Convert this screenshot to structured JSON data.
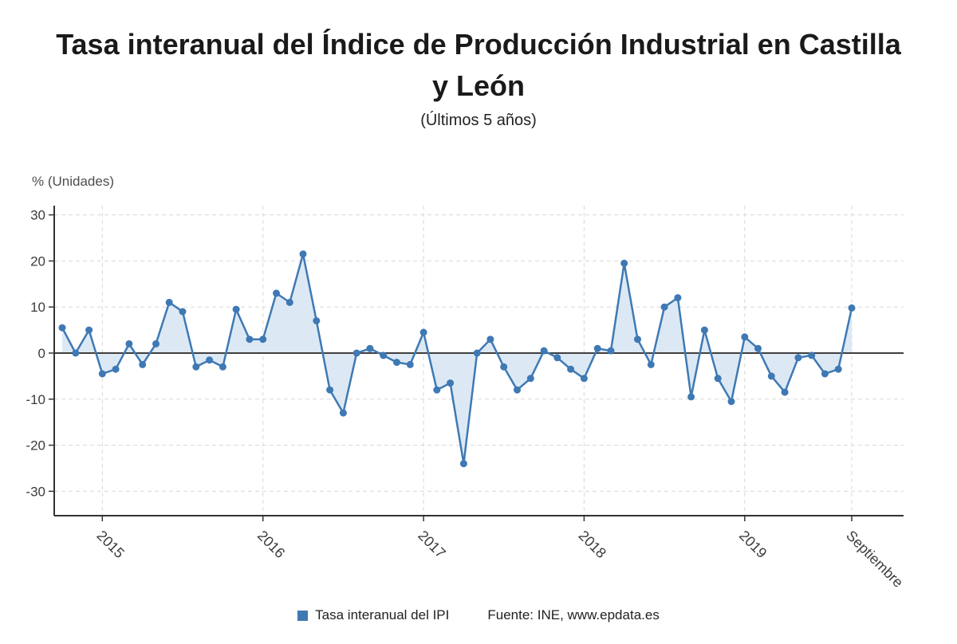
{
  "title": "Tasa interanual del Índice de Producción Industrial en Castilla y León",
  "subtitle": "(Últimos 5 años)",
  "y_axis_title": "% (Unidades)",
  "legend": {
    "series_label": "Tasa interanual del IPI",
    "source_label": "Fuente: INE, www.epdata.es"
  },
  "colors": {
    "line": "#3e79b4",
    "area": "#dce9f4",
    "grid": "#d8d8d8",
    "axis": "#333333",
    "zero_line": "#3f3f3f",
    "text": "#3c3c3c"
  },
  "chart_data": {
    "type": "line",
    "title": "Tasa interanual del Índice de Producción Industrial en Castilla y León",
    "subtitle": "(Últimos 5 años)",
    "ylabel": "% (Unidades)",
    "x_unit": "month",
    "x_tick_labels": [
      "2015",
      "2016",
      "2017",
      "2018",
      "2019",
      "Septiembre"
    ],
    "x_tick_indexes": [
      3,
      15,
      27,
      39,
      51,
      59
    ],
    "y_ticks": [
      30,
      20,
      10,
      0,
      -10,
      -20,
      -30
    ],
    "ylim": [
      -33,
      32
    ],
    "grid": true,
    "area_fill": true,
    "legend_position": "bottom",
    "series": [
      {
        "name": "Tasa interanual del IPI",
        "values": [
          5.5,
          0,
          5,
          -4.5,
          -3.5,
          2,
          -2.5,
          2,
          11,
          9,
          -3,
          -1.5,
          -3,
          9.5,
          3,
          3,
          13,
          11,
          21.5,
          7,
          -8,
          -13,
          0,
          1,
          -0.5,
          -2,
          -2.5,
          4.5,
          -8,
          -6.5,
          -24,
          0,
          3,
          -3,
          -8,
          -5.5,
          0.5,
          -1,
          -3.5,
          -5.5,
          1,
          0.5,
          19.5,
          3,
          -2.5,
          10,
          12,
          -9.5,
          5,
          -5.5,
          -10.5,
          3.5,
          1,
          -5,
          -8.5,
          -1,
          -0.5,
          -4.5,
          -3.5,
          9.8
        ]
      }
    ]
  }
}
